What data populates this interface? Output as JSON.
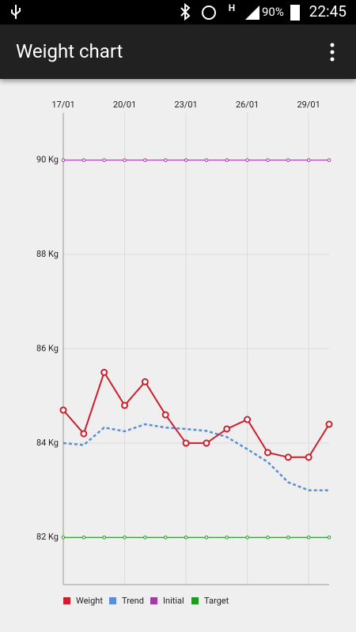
{
  "status_bar": {
    "network": "H",
    "battery": "90%",
    "time": "22:45"
  },
  "app_bar": {
    "title": "Weight chart"
  },
  "chart_data": {
    "type": "line",
    "categories": [
      "17/01",
      null,
      null,
      "20/01",
      null,
      null,
      "23/01",
      null,
      null,
      "26/01",
      null,
      null,
      "29/01",
      null
    ],
    "series": [
      {
        "name": "Weight",
        "color": "#cc1f2b",
        "line_style": "solid",
        "marker": "ring",
        "values": [
          84.7,
          84.2,
          85.5,
          84.8,
          85.3,
          84.6,
          84.0,
          84.0,
          84.3,
          84.5,
          83.8,
          83.7,
          83.7,
          84.4
        ]
      },
      {
        "name": "Trend",
        "color": "#5a8fd6",
        "line_style": "dashed",
        "marker": "none",
        "values": [
          84.0,
          83.96,
          84.33,
          84.25,
          84.4,
          84.33,
          84.3,
          84.26,
          84.13,
          83.87,
          83.6,
          83.17,
          83.0,
          83.0
        ]
      },
      {
        "name": "Initial",
        "color": "#a23aa8",
        "line_style": "solid",
        "marker": "dot",
        "values": [
          90,
          90,
          90,
          90,
          90,
          90,
          90,
          90,
          90,
          90,
          90,
          90,
          90,
          90
        ]
      },
      {
        "name": "Target",
        "color": "#1f9a1f",
        "line_style": "solid",
        "marker": "dot",
        "values": [
          82,
          82,
          82,
          82,
          82,
          82,
          82,
          82,
          82,
          82,
          82,
          82,
          82,
          82
        ]
      }
    ],
    "ylim": [
      81,
      91
    ],
    "yticks": [
      {
        "value": 82,
        "label": "82 Kg"
      },
      {
        "value": 84,
        "label": "84 Kg"
      },
      {
        "value": 86,
        "label": "86 Kg"
      },
      {
        "value": 88,
        "label": "88 Kg"
      },
      {
        "value": 90,
        "label": "90 Kg"
      }
    ],
    "grid": true,
    "legend": "bottom-left"
  }
}
